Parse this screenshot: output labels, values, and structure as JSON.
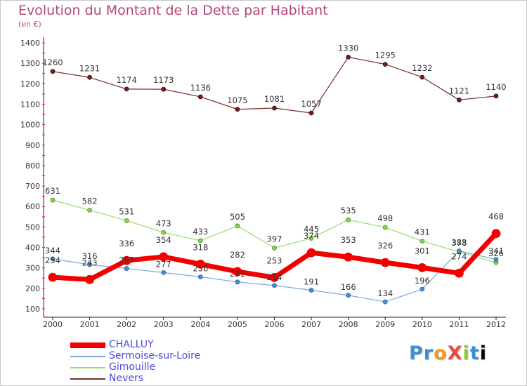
{
  "chart_data": {
    "type": "line",
    "title": "Evolution du Montant de la Dette par Habitant",
    "subtitle": "(en €)",
    "xlabel": "",
    "ylabel": "",
    "categories": [
      "2000",
      "2001",
      "2002",
      "2003",
      "2004",
      "2005",
      "2006",
      "2007",
      "2008",
      "2009",
      "2010",
      "2011",
      "2012"
    ],
    "ylim": [
      100,
      1400
    ],
    "yticks": [
      100,
      200,
      300,
      400,
      500,
      600,
      700,
      800,
      900,
      1000,
      1100,
      1200,
      1300,
      1400
    ],
    "grid": false,
    "legend_position": "bottom-left",
    "series": [
      {
        "name": "CHALLUY",
        "color": "#f20000",
        "values": [
          254,
          243,
          336,
          354,
          318,
          282,
          253,
          374,
          353,
          326,
          301,
          274,
          468
        ]
      },
      {
        "name": "Sermoise-sur-Loire",
        "color": "#7ba7d6",
        "values": [
          344,
          316,
          297,
          277,
          256,
          231,
          214,
          191,
          166,
          134,
          196,
          383,
          341
        ]
      },
      {
        "name": "Gimouille",
        "color": "#99dd66",
        "values": [
          631,
          582,
          531,
          473,
          433,
          505,
          397,
          445,
          535,
          498,
          431,
          378,
          326
        ]
      },
      {
        "name": "Nevers",
        "color": "#7a2a2a",
        "values": [
          1260,
          1231,
          1174,
          1173,
          1136,
          1075,
          1081,
          1057,
          1330,
          1295,
          1232,
          1121,
          1140
        ]
      }
    ]
  },
  "logo": {
    "text": "ProXiti"
  }
}
